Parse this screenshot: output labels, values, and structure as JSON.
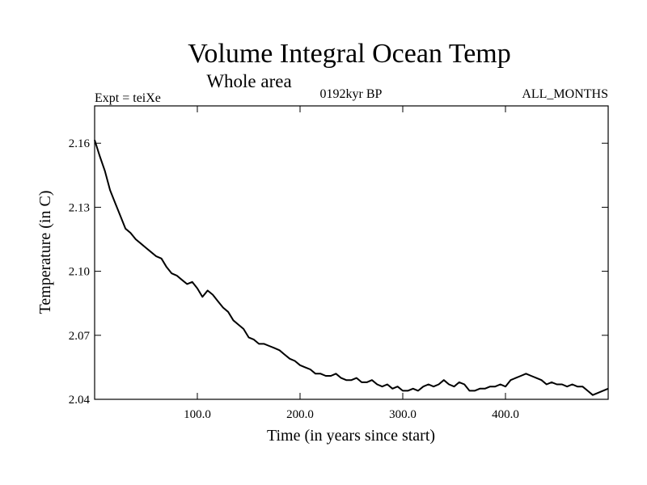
{
  "chart_data": {
    "type": "line",
    "title": "Volume Integral Ocean Temp",
    "subtitle": "Whole area",
    "left_label": "Expt = teiXe",
    "center_label": "0192kyr BP",
    "right_label": "ALL_MONTHS",
    "xlabel": "Time (in years since start)",
    "ylabel": "Temperature (in C)",
    "xlim": [
      0,
      500
    ],
    "ylim": [
      2.04,
      2.1775
    ],
    "xticks": [
      100,
      200,
      300,
      400
    ],
    "xtick_labels": [
      "100.0",
      "200.0",
      "300.0",
      "400.0"
    ],
    "yticks": [
      2.04,
      2.07,
      2.1,
      2.13,
      2.16
    ],
    "ytick_labels": [
      "2.04",
      "2.07",
      "2.10",
      "2.13",
      "2.16"
    ],
    "grid": false,
    "line_color": "#000000",
    "series": [
      {
        "x": [
          0,
          5,
          10,
          15,
          20,
          25,
          30,
          35,
          40,
          45,
          50,
          55,
          60,
          65,
          70,
          75,
          80,
          85,
          90,
          95,
          100,
          105,
          110,
          115,
          120,
          125,
          130,
          135,
          140,
          145,
          150,
          155,
          160,
          165,
          170,
          175,
          180,
          185,
          190,
          195,
          200,
          205,
          210,
          215,
          220,
          225,
          230,
          235,
          240,
          245,
          250,
          255,
          260,
          265,
          270,
          275,
          280,
          285,
          290,
          295,
          300,
          305,
          310,
          315,
          320,
          325,
          330,
          335,
          340,
          345,
          350,
          355,
          360,
          365,
          370,
          375,
          380,
          385,
          390,
          395,
          400,
          405,
          410,
          415,
          420,
          425,
          430,
          435,
          440,
          445,
          450,
          455,
          460,
          465,
          470,
          475,
          480,
          485,
          490,
          495,
          500
        ],
        "values": [
          2.1615,
          2.154,
          2.147,
          2.138,
          2.132,
          2.126,
          2.12,
          2.118,
          2.115,
          2.113,
          2.111,
          2.109,
          2.107,
          2.106,
          2.102,
          2.099,
          2.098,
          2.096,
          2.094,
          2.095,
          2.092,
          2.088,
          2.091,
          2.089,
          2.086,
          2.083,
          2.081,
          2.077,
          2.075,
          2.073,
          2.069,
          2.068,
          2.066,
          2.066,
          2.065,
          2.064,
          2.063,
          2.061,
          2.059,
          2.058,
          2.056,
          2.055,
          2.054,
          2.052,
          2.052,
          2.051,
          2.051,
          2.052,
          2.05,
          2.049,
          2.049,
          2.05,
          2.048,
          2.048,
          2.049,
          2.047,
          2.046,
          2.047,
          2.045,
          2.046,
          2.044,
          2.044,
          2.045,
          2.044,
          2.046,
          2.047,
          2.046,
          2.047,
          2.049,
          2.047,
          2.046,
          2.048,
          2.047,
          2.044,
          2.044,
          2.045,
          2.045,
          2.046,
          2.046,
          2.047,
          2.046,
          2.049,
          2.05,
          2.051,
          2.052,
          2.051,
          2.05,
          2.049,
          2.047,
          2.048,
          2.047,
          2.047,
          2.046,
          2.047,
          2.046,
          2.046,
          2.044,
          2.042,
          2.043,
          2.044,
          2.045
        ]
      }
    ]
  }
}
